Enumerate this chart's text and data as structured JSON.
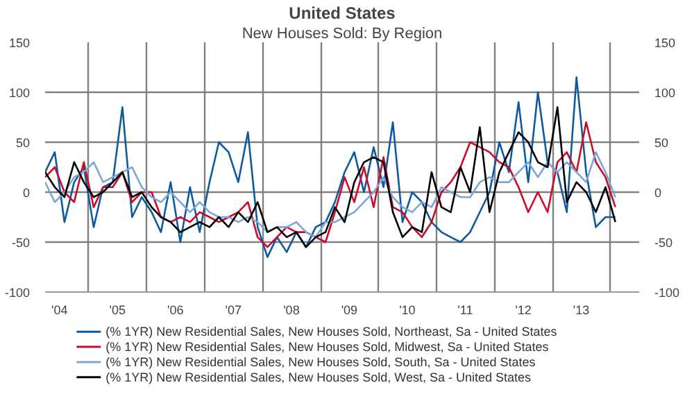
{
  "chart_data": {
    "type": "line",
    "title": "United States",
    "subtitle": "New Houses Sold: By Region",
    "x": [
      "2004-04",
      "2004-06",
      "2004-08",
      "2004-10",
      "2004-12",
      "2005-02",
      "2005-04",
      "2005-06",
      "2005-08",
      "2005-10",
      "2005-12",
      "2006-02",
      "2006-04",
      "2006-06",
      "2006-08",
      "2006-10",
      "2006-12",
      "2007-02",
      "2007-04",
      "2007-06",
      "2007-08",
      "2007-10",
      "2007-12",
      "2008-02",
      "2008-04",
      "2008-06",
      "2008-08",
      "2008-10",
      "2008-12",
      "2009-02",
      "2009-04",
      "2009-06",
      "2009-08",
      "2009-10",
      "2009-12",
      "2010-02",
      "2010-04",
      "2010-06",
      "2010-08",
      "2010-10",
      "2010-12",
      "2011-02",
      "2011-04",
      "2011-06",
      "2011-08",
      "2011-10",
      "2011-12",
      "2012-02",
      "2012-04",
      "2012-06",
      "2012-08",
      "2012-10",
      "2012-12",
      "2013-02",
      "2013-04",
      "2013-06",
      "2013-08",
      "2013-10",
      "2013-12",
      "2014-02"
    ],
    "series": [
      {
        "name": "(% 1YR) New Residential Sales, New Houses Sold, Northeast, Sa - United States",
        "color": "#0b5aa2",
        "values": [
          20,
          40,
          -30,
          10,
          25,
          -35,
          5,
          10,
          85,
          -25,
          -5,
          -20,
          -40,
          10,
          -50,
          5,
          -40,
          10,
          50,
          40,
          10,
          60,
          -35,
          -65,
          -45,
          -60,
          -40,
          -55,
          -35,
          -30,
          -10,
          20,
          40,
          0,
          45,
          5,
          70,
          -30,
          0,
          -10,
          -30,
          -40,
          -45,
          -50,
          -40,
          -20,
          0,
          50,
          20,
          90,
          10,
          100,
          30,
          20,
          -20,
          115,
          20,
          -35,
          -25,
          -25
        ]
      },
      {
        "name": "(% 1YR) New Residential Sales, New Houses Sold, Midwest, Sa - United States",
        "color": "#cc0a2a",
        "values": [
          15,
          25,
          0,
          -10,
          30,
          -15,
          5,
          5,
          20,
          -10,
          0,
          0,
          -25,
          -30,
          -25,
          -30,
          -20,
          -25,
          -30,
          -25,
          -20,
          -10,
          -45,
          -55,
          -45,
          -35,
          -40,
          -40,
          -45,
          -50,
          -20,
          15,
          -10,
          25,
          -15,
          35,
          -15,
          -20,
          -35,
          -45,
          -30,
          0,
          10,
          25,
          50,
          45,
          40,
          30,
          25,
          5,
          -20,
          0,
          -20,
          30,
          40,
          20,
          70,
          30,
          15,
          -15
        ]
      },
      {
        "name": "(% 1YR) New Residential Sales, New Houses Sold, South, Sa - United States",
        "color": "#7ca6d8",
        "values": [
          10,
          -10,
          0,
          15,
          20,
          30,
          10,
          15,
          20,
          25,
          5,
          -5,
          -10,
          0,
          -10,
          -20,
          -10,
          -20,
          -25,
          -25,
          -30,
          -25,
          -30,
          -40,
          -35,
          -35,
          -30,
          -40,
          -45,
          -30,
          -30,
          -25,
          -20,
          -10,
          0,
          15,
          -5,
          -15,
          -20,
          -10,
          -15,
          5,
          0,
          -5,
          -5,
          10,
          15,
          10,
          10,
          20,
          30,
          15,
          30,
          20,
          30,
          20,
          10,
          40,
          20,
          -5
        ]
      },
      {
        "name": "(% 1YR) New Residential Sales, New Houses Sold, West, Sa - United States",
        "color": "#000000",
        "values": [
          20,
          5,
          -5,
          30,
          10,
          -5,
          0,
          10,
          20,
          -5,
          0,
          -15,
          -25,
          -30,
          -40,
          -35,
          -30,
          -35,
          -25,
          -35,
          -20,
          -30,
          -10,
          -40,
          -35,
          -45,
          -40,
          -55,
          -45,
          -40,
          -15,
          -30,
          10,
          30,
          35,
          30,
          -20,
          -45,
          -35,
          -40,
          20,
          -15,
          -20,
          25,
          0,
          65,
          -20,
          20,
          40,
          60,
          50,
          30,
          25,
          85,
          -10,
          10,
          0,
          -20,
          5,
          -30
        ]
      }
    ],
    "xlim": [
      "2004-04",
      "2014-07"
    ],
    "xticks": [
      {
        "value": "2004-07",
        "label": "'04"
      },
      {
        "value": "2005-01",
        "label": null
      },
      {
        "value": "2005-07",
        "label": "'05"
      },
      {
        "value": "2006-01",
        "label": null
      },
      {
        "value": "2006-07",
        "label": "'06"
      },
      {
        "value": "2007-01",
        "label": null
      },
      {
        "value": "2007-07",
        "label": "'07"
      },
      {
        "value": "2008-01",
        "label": null
      },
      {
        "value": "2008-07",
        "label": "'08"
      },
      {
        "value": "2009-01",
        "label": null
      },
      {
        "value": "2009-07",
        "label": "'09"
      },
      {
        "value": "2010-01",
        "label": null
      },
      {
        "value": "2010-07",
        "label": "'10"
      },
      {
        "value": "2011-01",
        "label": null
      },
      {
        "value": "2011-07",
        "label": "'11"
      },
      {
        "value": "2012-01",
        "label": null
      },
      {
        "value": "2012-07",
        "label": "'12"
      },
      {
        "value": "2013-01",
        "label": null
      },
      {
        "value": "2013-07",
        "label": "'13"
      },
      {
        "value": "2014-01",
        "label": null
      }
    ],
    "ylim": [
      -100,
      150
    ],
    "yticks": [
      -100,
      -50,
      0,
      50,
      100,
      150
    ],
    "y2lim": [
      -100,
      150
    ],
    "y2ticks": [
      -100,
      -50,
      0,
      50,
      100,
      150
    ],
    "grid": true,
    "legend": "bottom",
    "marker": "none",
    "line_style": "solid"
  }
}
